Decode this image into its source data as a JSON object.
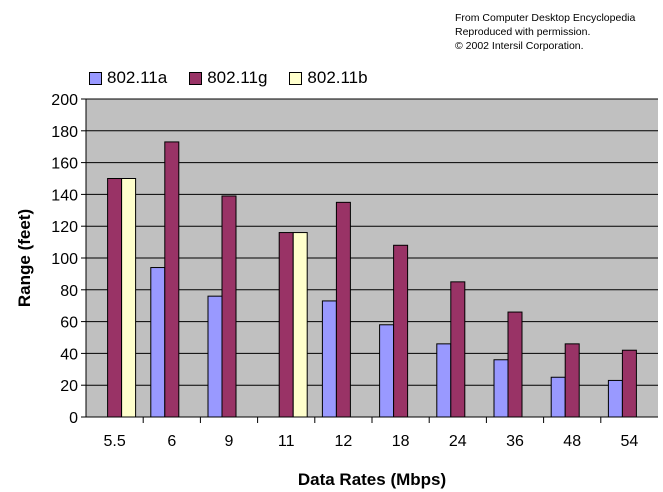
{
  "credit": {
    "line1": "From Computer Desktop Encyclopedia",
    "line2": "Reproduced with permission.",
    "line3": "© 2002 Intersil Corporation."
  },
  "chart_data": {
    "type": "bar",
    "title": "",
    "xlabel": "Data Rates (Mbps)",
    "ylabel": "Range (feet)",
    "ylim": [
      0,
      200
    ],
    "yticks": [
      0,
      20,
      40,
      60,
      80,
      100,
      120,
      140,
      160,
      180,
      200
    ],
    "grid": true,
    "legend_position": "top-left",
    "plot_background": "#c0c0c0",
    "categories": [
      "5.5",
      "6",
      "9",
      "11",
      "12",
      "18",
      "24",
      "36",
      "48",
      "54"
    ],
    "series": [
      {
        "name": "802.11a",
        "color": "#9999ff",
        "values": [
          null,
          94,
          76,
          null,
          73,
          58,
          46,
          36,
          25,
          23
        ]
      },
      {
        "name": "802.11g",
        "color": "#993366",
        "values": [
          150,
          173,
          139,
          116,
          135,
          108,
          85,
          66,
          46,
          42
        ]
      },
      {
        "name": "802.11b",
        "color": "#ffffcc",
        "values": [
          150,
          null,
          null,
          116,
          null,
          null,
          null,
          null,
          null,
          null
        ]
      }
    ]
  }
}
